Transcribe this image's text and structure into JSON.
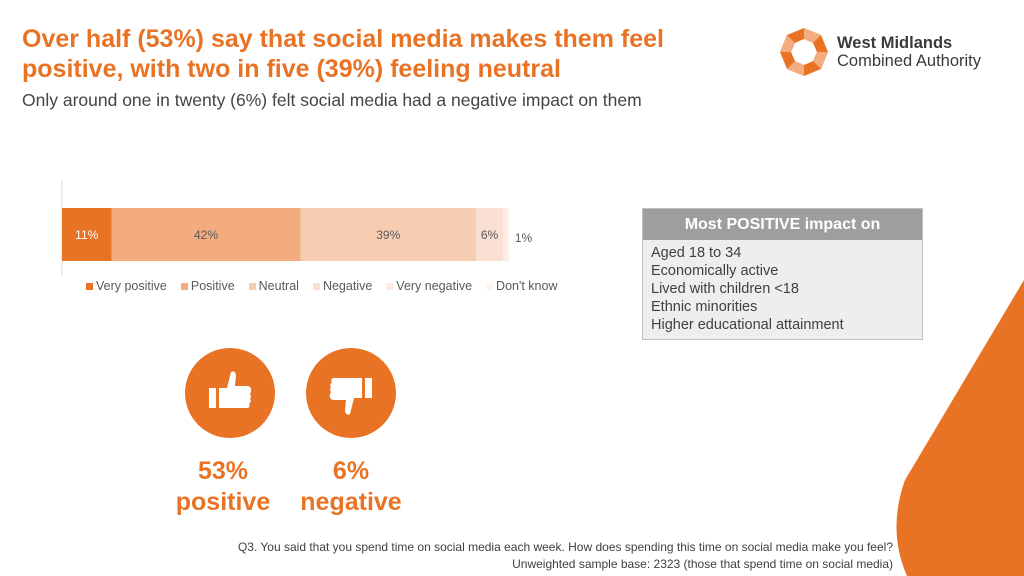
{
  "header": {
    "title": "Over half (53%) say that social media makes them feel positive, with two in five (39%) feeling neutral",
    "subtitle": "Only around one in twenty (6%) felt social media had a negative impact on them"
  },
  "logo": {
    "line1": "West Midlands",
    "line2": "Combined Authority"
  },
  "colors": {
    "accent": "#E97325"
  },
  "chart_data": {
    "type": "bar",
    "orientation": "horizontal-stacked",
    "categories": [
      ""
    ],
    "series": [
      {
        "name": "Very positive",
        "values": [
          11
        ],
        "label": "11%",
        "color": "#E97325"
      },
      {
        "name": "Positive",
        "values": [
          42
        ],
        "label": "42%",
        "color": "#F3AC80"
      },
      {
        "name": "Neutral",
        "values": [
          39
        ],
        "label": "39%",
        "color": "#F7CDB2"
      },
      {
        "name": "Negative",
        "values": [
          6
        ],
        "label": "6%",
        "color": "#FAE0D2"
      },
      {
        "name": "Very negative",
        "values": [
          1
        ],
        "label": "1%",
        "color": "#FCECE3"
      },
      {
        "name": "Don't know",
        "values": [
          0.5
        ],
        "label": "",
        "color": "#FDF5F0"
      }
    ],
    "xlim": [
      0,
      100
    ],
    "legend": "bottom"
  },
  "panel": {
    "heading": "Most POSITIVE impact on",
    "items": [
      "Aged 18 to 34",
      "Economically active",
      "Lived with children <18",
      "Ethnic minorities",
      "Higher educational attainment"
    ]
  },
  "stats": [
    {
      "value": "53%",
      "label": "positive",
      "icon": "thumbs-up-icon"
    },
    {
      "value": "6%",
      "label": "negative",
      "icon": "thumbs-down-icon"
    }
  ],
  "footnote": {
    "line1": "Q3. You said that you spend time on social media each week. How does spending this time on social media make you feel?",
    "line2": "Unweighted sample base: 2323 (those that spend time on social media)"
  }
}
